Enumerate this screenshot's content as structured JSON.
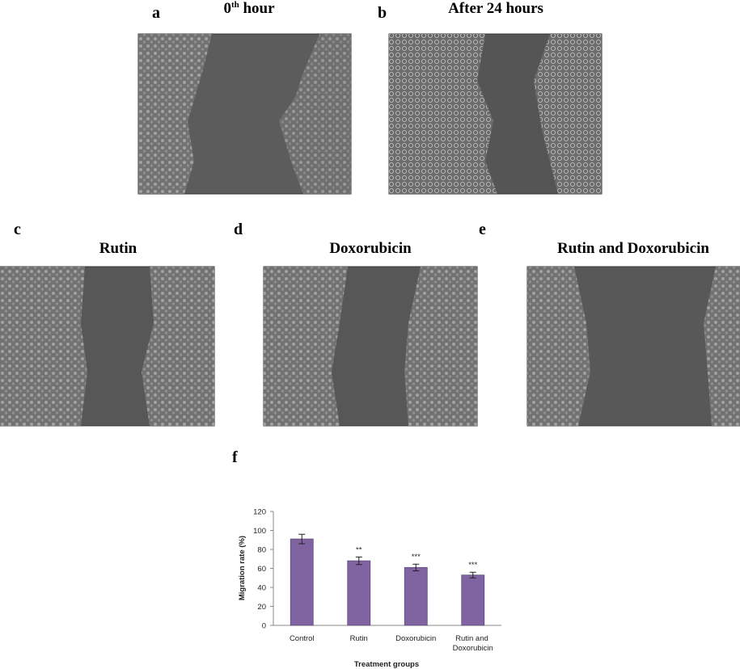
{
  "panels": [
    {
      "label": "a",
      "title": "0",
      "title_sup": "th",
      "title_rest": " hour"
    },
    {
      "label": "b",
      "title": "After 24 hours"
    },
    {
      "label": "c",
      "title": "Rutin"
    },
    {
      "label": "d",
      "title": "Doxorubicin"
    },
    {
      "label": "e",
      "title": "Rutin and Doxorubicin"
    }
  ],
  "chart_label": "f",
  "chart_data": {
    "type": "bar",
    "ylabel": "Migration rate (%)",
    "xlabel": "Treatment groups",
    "categories": [
      "Control",
      "Rutin",
      "Doxorubicin",
      "Rutin and Doxorubicin"
    ],
    "values": [
      91,
      68,
      61,
      53
    ],
    "errors": [
      5,
      4,
      3.5,
      3
    ],
    "annotations": [
      null,
      "**",
      "***",
      "***"
    ],
    "color": "#8064a2",
    "ylim": [
      0,
      120
    ],
    "yticks": [
      0,
      20,
      40,
      60,
      80,
      100,
      120
    ],
    "grid": false
  }
}
